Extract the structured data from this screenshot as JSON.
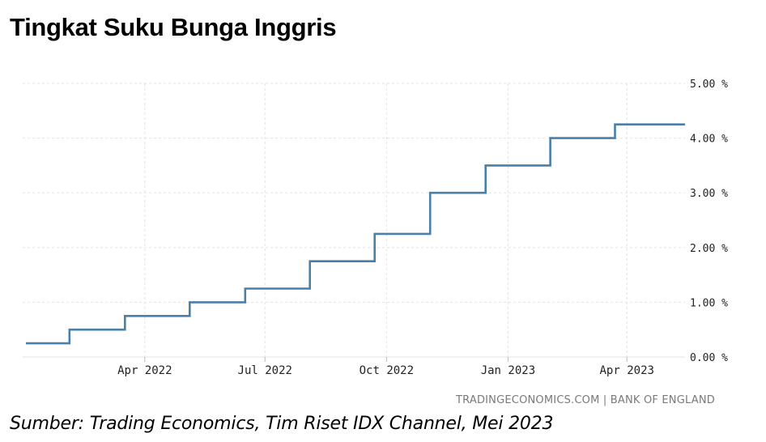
{
  "header": {
    "title": "Tingkat Suku Bunga Inggris"
  },
  "footer": {
    "attribution": "TRADINGECONOMICS.COM | BANK OF ENGLAND",
    "source": "Sumber: Trading Economics, Tim Riset IDX Channel, Mei 2023"
  },
  "chart_data": {
    "type": "line",
    "step": true,
    "x_range": [
      "2022-01-01",
      "2023-05-15"
    ],
    "ylim": [
      0,
      5
    ],
    "y_ticks": [
      "0.00 %",
      "1.00 %",
      "2.00 %",
      "3.00 %",
      "4.00 %",
      "5.00 %"
    ],
    "y_tick_values": [
      0,
      1,
      2,
      3,
      4,
      5
    ],
    "x_ticks": [
      "Apr 2022",
      "Jul 2022",
      "Oct 2022",
      "Jan 2023",
      "Apr 2023"
    ],
    "x_tick_dates": [
      "2022-04-01",
      "2022-07-01",
      "2022-10-01",
      "2023-01-01",
      "2023-04-01"
    ],
    "grid": true,
    "line_color": "#4a7fa8",
    "series": [
      {
        "points": [
          {
            "date": "2022-01-01",
            "value": 0.25
          },
          {
            "date": "2022-02-03",
            "value": 0.5
          },
          {
            "date": "2022-03-17",
            "value": 0.75
          },
          {
            "date": "2022-05-05",
            "value": 1.0
          },
          {
            "date": "2022-06-16",
            "value": 1.25
          },
          {
            "date": "2022-08-04",
            "value": 1.75
          },
          {
            "date": "2022-09-22",
            "value": 2.25
          },
          {
            "date": "2022-11-03",
            "value": 3.0
          },
          {
            "date": "2022-12-15",
            "value": 3.5
          },
          {
            "date": "2023-02-02",
            "value": 4.0
          },
          {
            "date": "2023-03-23",
            "value": 4.25
          },
          {
            "date": "2023-05-15",
            "value": 4.25
          }
        ]
      }
    ]
  }
}
